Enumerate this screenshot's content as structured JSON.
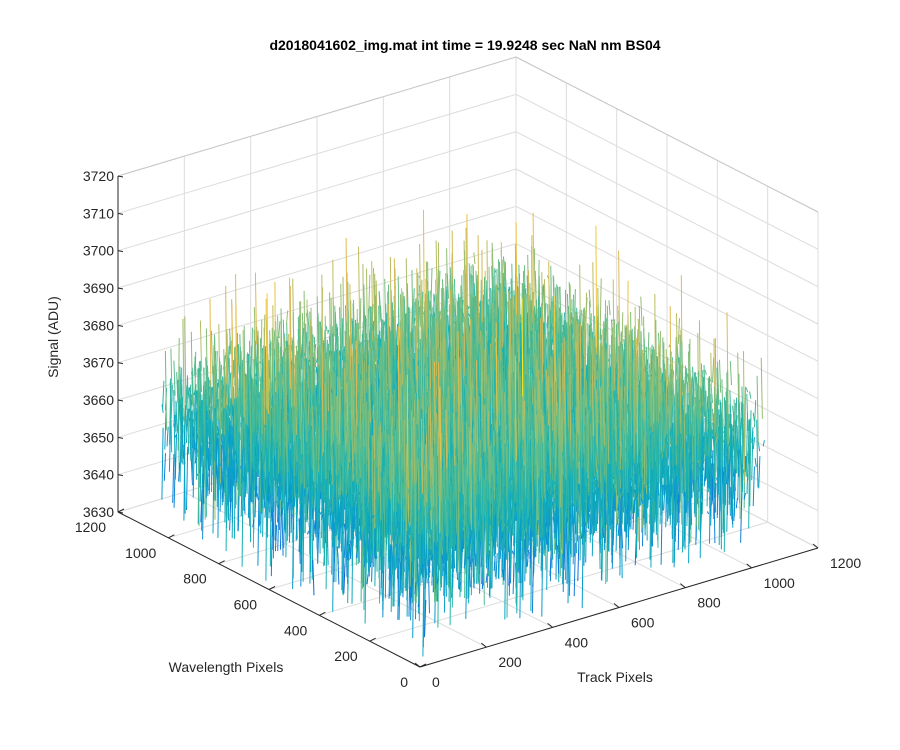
{
  "chart_data": {
    "type": "surface",
    "title": "d2018041602_img.mat int time = 19.9248 sec  NaN nm BS04",
    "xlabel": "Track Pixels",
    "ylabel": "Wavelength Pixels",
    "zlabel": "Signal (ADU)",
    "xlim": [
      0,
      1200
    ],
    "ylim": [
      0,
      1200
    ],
    "zlim": [
      3630,
      3720
    ],
    "xticks": [
      "0",
      "200",
      "400",
      "600",
      "800",
      "1000",
      "1200"
    ],
    "yticks": [
      "0",
      "200",
      "400",
      "600",
      "800",
      "1000",
      "1200"
    ],
    "zticks": [
      "3630",
      "3640",
      "3650",
      "3660",
      "3670",
      "3680",
      "3690",
      "3700",
      "3710",
      "3720"
    ],
    "data_extent": {
      "x": [
        0,
        1024
      ],
      "y": [
        0,
        1024
      ]
    },
    "signal_mean": 3661,
    "signal_spread": 12,
    "signal_range_approx": [
      3632,
      3710
    ],
    "colormap": "parula",
    "grid": true
  }
}
